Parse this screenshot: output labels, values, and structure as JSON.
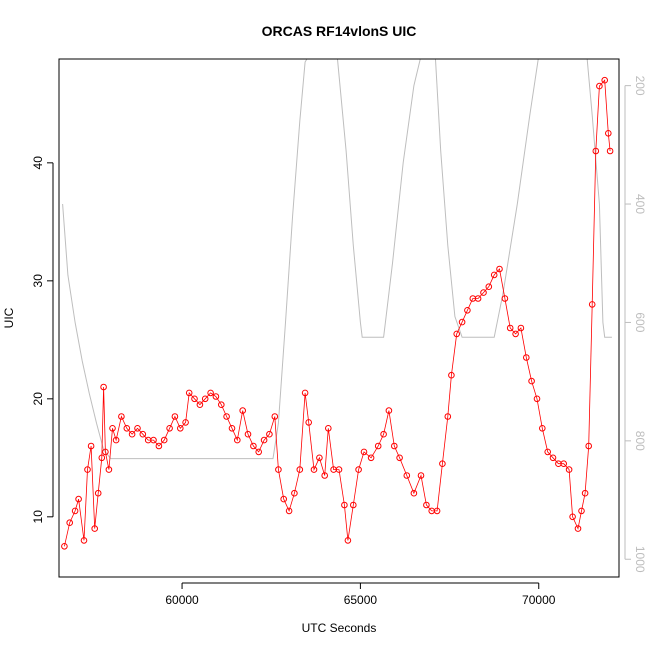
{
  "chart_data": {
    "type": "scatter",
    "title": "ORCAS RF14vlonS UIC",
    "xlabel": "UTC Seconds",
    "ylabel": "UIC",
    "xlim": [
      56550,
      72250
    ],
    "ylim": [
      4.9,
      48.8
    ],
    "y2lim": [
      1030,
      155
    ],
    "x_ticks": [
      60000,
      65000,
      70000
    ],
    "x_tick_labels": [
      "60000",
      "65000",
      "70000"
    ],
    "y_ticks": [
      10,
      20,
      30,
      40
    ],
    "y_tick_labels": [
      "10",
      "20",
      "30",
      "40"
    ],
    "y2_ticks": [
      200,
      400,
      600,
      800,
      1000
    ],
    "y2_tick_labels": [
      "200",
      "400",
      "600",
      "800",
      "1000"
    ],
    "grid": false,
    "legend": "none",
    "colors": {
      "uic": "#ff0000",
      "pressure": "#bebebe"
    },
    "series": [
      {
        "marker": "open-circle",
        "x": [
          56700,
          56850,
          57000,
          57100,
          57250,
          57350,
          57450,
          57550,
          57650,
          57750,
          57800,
          57850,
          57950,
          58050,
          58150,
          58300,
          58450,
          58600,
          58750,
          58900,
          59050,
          59200,
          59350,
          59500,
          59650,
          59800,
          59950,
          60100,
          60200,
          60350,
          60500,
          60650,
          60800,
          60950,
          61100,
          61250,
          61400,
          61550,
          61700,
          61850,
          62000,
          62150,
          62300,
          62450,
          62600,
          62700,
          62850,
          63000,
          63150,
          63300,
          63450,
          63550,
          63700,
          63850,
          64000,
          64100,
          64250,
          64400,
          64550,
          64650,
          64800,
          64950,
          65100,
          65300,
          65500,
          65650,
          65800,
          65950,
          66100,
          66300,
          66500,
          66700,
          66850,
          67000,
          67150,
          67300,
          67450,
          67550,
          67700,
          67850,
          68000,
          68150,
          68300,
          68450,
          68600,
          68750,
          68900,
          69050,
          69200,
          69350,
          69500,
          69650,
          69800,
          69950,
          70100,
          70250,
          70400,
          70550,
          70700,
          70850,
          70950,
          71100,
          71200,
          71300,
          71400,
          71500,
          71600,
          71700,
          71850,
          71950,
          72000
        ],
        "y": [
          7.5,
          9.5,
          10.5,
          11.5,
          8,
          14,
          16,
          9,
          12,
          15,
          21,
          15.5,
          14,
          17.5,
          16.5,
          18.5,
          17.5,
          17,
          17.5,
          17,
          16.5,
          16.5,
          16,
          16.5,
          17.5,
          18.5,
          17.5,
          18,
          20.5,
          20,
          19.5,
          20,
          20.5,
          20.2,
          19.5,
          18.5,
          17.5,
          16.5,
          19,
          17,
          16,
          15.5,
          16.5,
          17,
          18.5,
          14,
          11.5,
          10.5,
          12,
          14,
          20.5,
          18,
          14,
          15,
          13.5,
          17.5,
          14,
          14,
          11,
          8,
          11,
          14,
          15.5,
          15,
          16,
          17,
          19,
          16,
          15,
          13.5,
          12,
          13.5,
          11,
          10.5,
          10.5,
          14.5,
          18.5,
          22,
          25.5,
          26.5,
          27.5,
          28.5,
          28.5,
          29,
          29.5,
          30.5,
          31,
          28.5,
          26,
          25.5,
          26,
          23.5,
          21.5,
          20,
          17.5,
          15.5,
          15,
          14.5,
          14.5,
          14,
          10,
          9,
          10.5,
          12,
          16,
          28,
          41,
          46.5,
          47,
          42.5,
          41
        ]
      },
      {
        "marker": "line",
        "x": [
          56650,
          56800,
          57000,
          57200,
          57400,
          57600,
          57800,
          58000,
          58200,
          58500,
          59000,
          59500,
          60000,
          60500,
          61000,
          61500,
          62000,
          62300,
          62550,
          62700,
          62900,
          63100,
          63300,
          63450,
          63550,
          63600,
          64150,
          64350,
          64600,
          64800,
          65000,
          65050,
          65650,
          65700,
          65900,
          66200,
          66500,
          66700,
          66800,
          66850,
          67100,
          67250,
          67450,
          67650,
          67850,
          68050,
          68150,
          68200,
          68650,
          68750,
          69000,
          69400,
          69750,
          70000,
          70100,
          70150,
          71350,
          71500,
          71700,
          71800,
          71850,
          71850,
          72050
        ],
        "y": [
          400,
          520,
          600,
          665,
          720,
          770,
          815,
          830,
          830,
          830,
          830,
          830,
          830,
          830,
          830,
          830,
          830,
          830,
          830,
          770,
          600,
          420,
          260,
          160,
          150,
          150,
          150,
          150,
          310,
          470,
          600,
          625,
          625,
          600,
          500,
          330,
          200,
          150,
          150,
          150,
          150,
          310,
          470,
          590,
          625,
          625,
          625,
          625,
          625,
          625,
          550,
          400,
          250,
          150,
          150,
          150,
          150,
          250,
          400,
          600,
          625,
          625,
          625
        ]
      }
    ]
  }
}
